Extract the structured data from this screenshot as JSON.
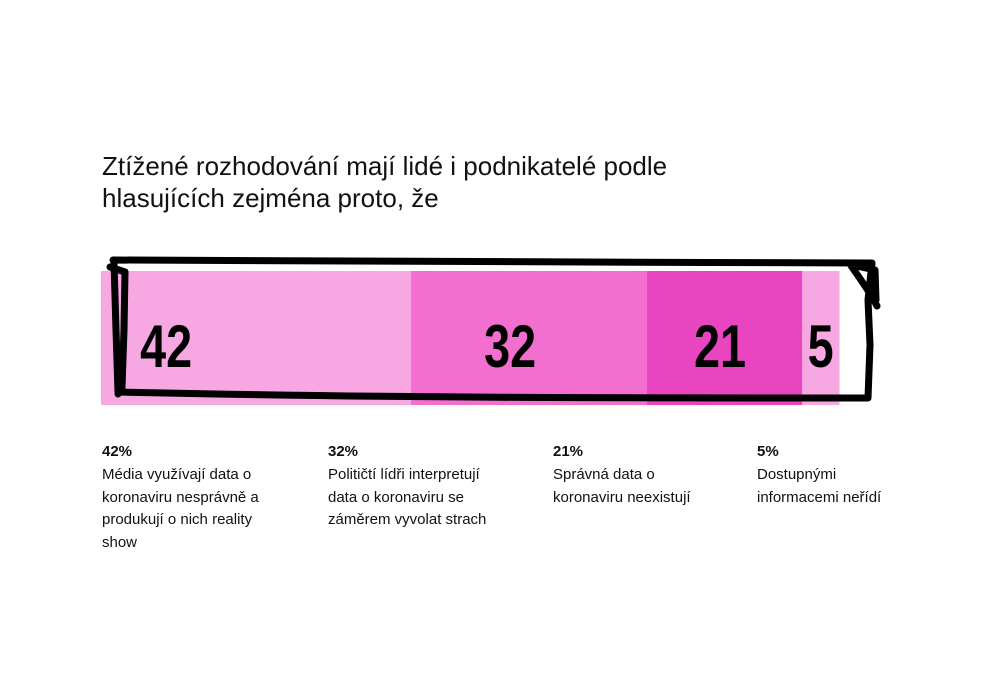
{
  "title_lines": [
    "Ztížené rozhodování mají lidé i podnikatelé podle",
    "hlasujících zejména proto, že"
  ],
  "chart_data": {
    "type": "bar",
    "orientation": "horizontal-stacked",
    "title": "Ztížené rozhodování mají lidé i podnikatelé podle hlasujících zejména proto, že",
    "unit": "%",
    "categories": [
      "Média využívají data o koronaviru nesprávně a produkují o nich reality show",
      "Političtí lídři interpretují data o koronaviru se záměrem vyvolat strach",
      "Správná data o koronaviru neexistují",
      "Dostupnými informacemi neřídí"
    ],
    "values": [
      42,
      32,
      21,
      5
    ],
    "data_labels": [
      "42",
      "32",
      "21",
      "5"
    ],
    "colors": [
      "#f7a8e3",
      "#f26fd0",
      "#ea45c0",
      "#f7a8e3"
    ],
    "outline_color": "#000000"
  },
  "legend": [
    {
      "pct": "42%",
      "lines": [
        "Média využívají data o",
        "koronaviru nesprávně a",
        "produkují o nich reality",
        "show"
      ]
    },
    {
      "pct": "32%",
      "lines": [
        "Političtí lídři interpretují",
        "data o koronaviru se",
        "záměrem vyvolat strach"
      ]
    },
    {
      "pct": "21%",
      "lines": [
        "Správná data o",
        "koronaviru neexistují"
      ]
    },
    {
      "pct": "5%",
      "lines": [
        "Dostupnými",
        "informacemi neřídí"
      ]
    }
  ]
}
